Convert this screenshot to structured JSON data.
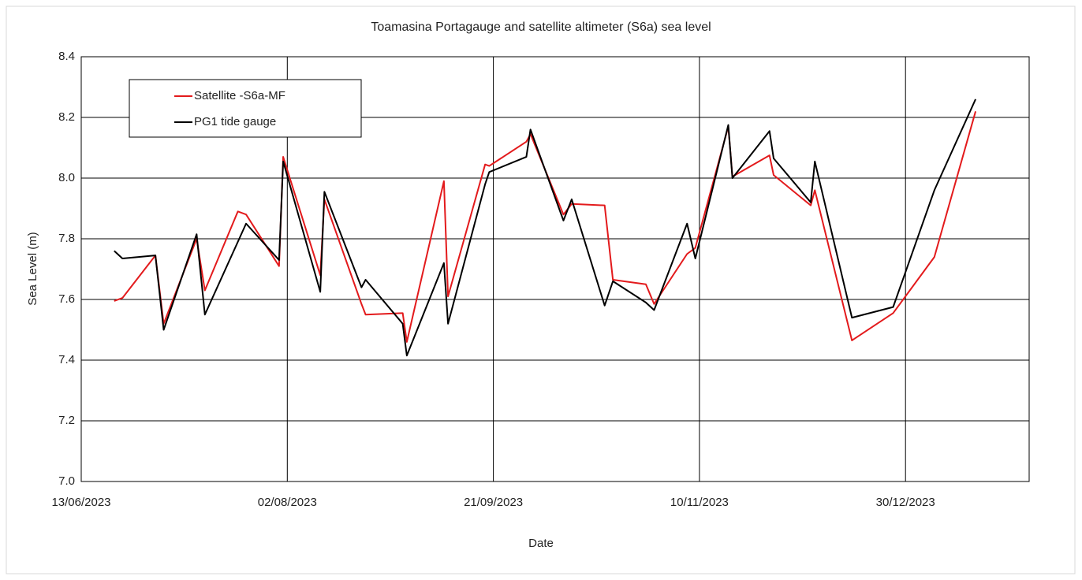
{
  "chart_data": {
    "type": "line",
    "title": "Toamasina Portagauge and satellite altimeter (S6a) sea level",
    "x_label": "Date",
    "y_label": "Sea Level (m)",
    "x": [
      "2023-06-21",
      "2023-06-23",
      "2023-07-01",
      "2023-07-03",
      "2023-07-11",
      "2023-07-13",
      "2023-07-21",
      "2023-07-23",
      "2023-07-31",
      "2023-08-01",
      "2023-08-10",
      "2023-08-11",
      "2023-08-20",
      "2023-08-21",
      "2023-08-30",
      "2023-08-31",
      "2023-09-09",
      "2023-09-10",
      "2023-09-19",
      "2023-09-20",
      "2023-09-29",
      "2023-09-30",
      "2023-10-08",
      "2023-10-10",
      "2023-10-18",
      "2023-10-20",
      "2023-10-28",
      "2023-10-30",
      "2023-11-07",
      "2023-11-09",
      "2023-11-17",
      "2023-11-18",
      "2023-11-27",
      "2023-11-28",
      "2023-12-07",
      "2023-12-08",
      "2023-12-17",
      "2023-12-27",
      "2024-01-06",
      "2024-01-16"
    ],
    "series": [
      {
        "name": "Satellite -S6a-MF",
        "color": "#e31a1c",
        "values": [
          7.595,
          7.605,
          7.745,
          7.52,
          7.8,
          7.63,
          7.89,
          7.88,
          7.71,
          8.07,
          7.68,
          7.93,
          7.585,
          7.55,
          7.555,
          7.46,
          7.99,
          7.61,
          8.045,
          8.04,
          8.12,
          8.145,
          7.88,
          7.915,
          7.91,
          7.665,
          7.65,
          7.585,
          7.75,
          7.77,
          8.17,
          8.005,
          8.075,
          8.01,
          7.91,
          7.96,
          7.465,
          7.555,
          7.74,
          8.22
        ]
      },
      {
        "name": "PG1 tide gauge",
        "color": "#000000",
        "values": [
          7.76,
          7.735,
          7.745,
          7.5,
          7.815,
          7.55,
          7.79,
          7.85,
          7.73,
          8.055,
          7.625,
          7.955,
          7.64,
          7.665,
          7.52,
          7.415,
          7.72,
          7.52,
          7.98,
          8.02,
          8.07,
          8.16,
          7.86,
          7.93,
          7.58,
          7.66,
          7.59,
          7.565,
          7.85,
          7.735,
          8.175,
          8.0,
          8.155,
          8.065,
          7.92,
          8.055,
          7.54,
          7.575,
          7.96,
          8.26
        ]
      }
    ],
    "xlim": [
      "2023-06-13",
      "2024-01-29"
    ],
    "xticks": [
      {
        "value": "2023-06-13",
        "label": "13/06/2023"
      },
      {
        "value": "2023-08-02",
        "label": "02/08/2023"
      },
      {
        "value": "2023-09-21",
        "label": "21/09/2023"
      },
      {
        "value": "2023-11-10",
        "label": "10/11/2023"
      },
      {
        "value": "2023-12-30",
        "label": "30/12/2023"
      }
    ],
    "ylim": [
      7.0,
      8.4
    ],
    "yticks": [
      {
        "value": 7.0,
        "label": "7.0"
      },
      {
        "value": 7.2,
        "label": "7.2"
      },
      {
        "value": 7.4,
        "label": "7.4"
      },
      {
        "value": 7.6,
        "label": "7.6"
      },
      {
        "value": 7.8,
        "label": "7.8"
      },
      {
        "value": 8.0,
        "label": "8.0"
      },
      {
        "value": 8.2,
        "label": "8.2"
      },
      {
        "value": 8.4,
        "label": "8.4"
      }
    ],
    "grid": true,
    "legend": "upper left"
  }
}
